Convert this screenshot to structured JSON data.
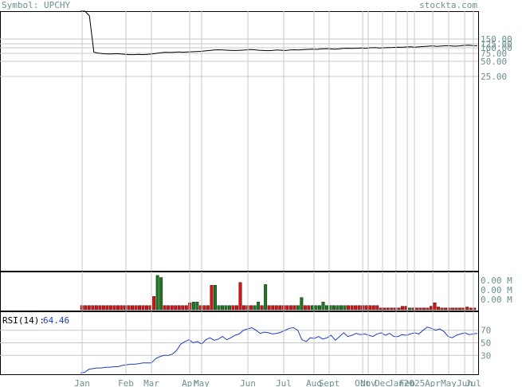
{
  "header": {
    "symbol": "Symbol: UPCHY",
    "site": "stockta.com"
  },
  "colors": {
    "axis_text": "#6b8f8f",
    "grid": "#c8c8c8",
    "frame": "#000000",
    "up": "#1e7a1e",
    "down": "#dd1111",
    "rsi_line": "#1d3fbf",
    "price_line": "#000000"
  },
  "chart_data": [
    {
      "type": "line",
      "panel": "price",
      "y_tick_labels": [
        "150.00",
        "125.00",
        "100.00",
        "75.00",
        "50.00",
        "25.00"
      ],
      "y_ticks": [
        150,
        125,
        100,
        75,
        50,
        25
      ],
      "x_tick_labels": [
        "Jan",
        "Feb",
        "Mar",
        "Apr",
        "May",
        "Jun",
        "Jul",
        "Aug",
        "Sept",
        "Oct",
        "Nov",
        "Dec",
        "Jan",
        "Feb",
        "2025",
        "Apr",
        "May",
        "Jun",
        "Jul"
      ],
      "series": [
        {
          "values": [
            3000,
            2000,
            1200,
            80,
            76,
            74,
            73,
            73,
            74,
            73,
            72,
            71,
            71,
            72,
            71,
            72,
            73,
            75,
            78,
            80,
            79,
            80,
            81,
            80,
            81,
            82,
            83,
            84,
            86,
            88,
            90,
            91,
            90,
            89,
            88,
            88,
            89,
            90,
            92,
            91,
            89,
            88,
            87,
            88,
            90,
            89,
            88,
            90,
            91,
            90,
            92,
            93,
            94,
            93,
            95,
            96,
            95,
            94,
            95,
            97,
            98,
            97,
            98,
            99,
            98,
            100,
            101,
            99,
            100,
            101,
            102,
            104,
            103,
            105,
            106,
            104,
            106,
            108,
            110,
            112,
            109,
            111,
            113,
            112,
            110,
            112,
            115,
            116,
            114,
            113
          ]
        }
      ]
    },
    {
      "type": "bar",
      "panel": "volume",
      "y_tick_labels": [
        "0.00 M",
        "0.00 M",
        "0.00 M"
      ],
      "bars": [
        {
          "c": "d",
          "v": 0.12
        },
        {
          "c": "d",
          "v": 0.12
        },
        {
          "c": "d",
          "v": 0.12
        },
        {
          "c": "d",
          "v": 0.12
        },
        {
          "c": "d",
          "v": 0.12
        },
        {
          "c": "d",
          "v": 0.12
        },
        {
          "c": "d",
          "v": 0.12
        },
        {
          "c": "d",
          "v": 0.12
        },
        {
          "c": "d",
          "v": 0.12
        },
        {
          "c": "d",
          "v": 0.12
        },
        {
          "c": "d",
          "v": 0.12
        },
        {
          "c": "d",
          "v": 0.12
        },
        {
          "c": "d",
          "v": 0.12
        },
        {
          "c": "d",
          "v": 0.12
        },
        {
          "c": "d",
          "v": 0.12
        },
        {
          "c": "d",
          "v": 0.12
        },
        {
          "c": "d",
          "v": 0.12
        },
        {
          "c": "d",
          "v": 0.12
        },
        {
          "c": "d",
          "v": 0.12
        },
        {
          "c": "d",
          "v": 0.12
        },
        {
          "c": "d",
          "v": 0.38
        },
        {
          "c": "u",
          "v": 0.98
        },
        {
          "c": "u",
          "v": 0.92
        },
        {
          "c": "d",
          "v": 0.12
        },
        {
          "c": "d",
          "v": 0.12
        },
        {
          "c": "d",
          "v": 0.12
        },
        {
          "c": "d",
          "v": 0.12
        },
        {
          "c": "d",
          "v": 0.12
        },
        {
          "c": "d",
          "v": 0.12
        },
        {
          "c": "d",
          "v": 0.12
        },
        {
          "c": "d",
          "v": 0.2
        },
        {
          "c": "u",
          "v": 0.22
        },
        {
          "c": "u",
          "v": 0.22
        },
        {
          "c": "d",
          "v": 0.12
        },
        {
          "c": "d",
          "v": 0.12
        },
        {
          "c": "d",
          "v": 0.12
        },
        {
          "c": "d",
          "v": 0.7
        },
        {
          "c": "u",
          "v": 0.7
        },
        {
          "c": "u",
          "v": 0.12
        },
        {
          "c": "u",
          "v": 0.12
        },
        {
          "c": "u",
          "v": 0.12
        },
        {
          "c": "u",
          "v": 0.12
        },
        {
          "c": "d",
          "v": 0.12
        },
        {
          "c": "d",
          "v": 0.12
        },
        {
          "c": "d",
          "v": 0.78
        },
        {
          "c": "d",
          "v": 0.12
        },
        {
          "c": "d",
          "v": 0.12
        },
        {
          "c": "d",
          "v": 0.12
        },
        {
          "c": "u",
          "v": 0.12
        },
        {
          "c": "u",
          "v": 0.22
        },
        {
          "c": "d",
          "v": 0.12
        },
        {
          "c": "u",
          "v": 0.72
        },
        {
          "c": "d",
          "v": 0.12
        },
        {
          "c": "d",
          "v": 0.12
        },
        {
          "c": "d",
          "v": 0.12
        },
        {
          "c": "d",
          "v": 0.12
        },
        {
          "c": "d",
          "v": 0.12
        },
        {
          "c": "d",
          "v": 0.12
        },
        {
          "c": "d",
          "v": 0.12
        },
        {
          "c": "d",
          "v": 0.12
        },
        {
          "c": "u",
          "v": 0.12
        },
        {
          "c": "u",
          "v": 0.35
        },
        {
          "c": "d",
          "v": 0.12
        },
        {
          "c": "d",
          "v": 0.12
        },
        {
          "c": "u",
          "v": 0.12
        },
        {
          "c": "u",
          "v": 0.12
        },
        {
          "c": "u",
          "v": 0.12
        },
        {
          "c": "u",
          "v": 0.22
        },
        {
          "c": "u",
          "v": 0.12
        },
        {
          "c": "u",
          "v": 0.12
        },
        {
          "c": "u",
          "v": 0.12
        },
        {
          "c": "u",
          "v": 0.12
        },
        {
          "c": "u",
          "v": 0.12
        },
        {
          "c": "u",
          "v": 0.12
        },
        {
          "c": "d",
          "v": 0.12
        },
        {
          "c": "d",
          "v": 0.12
        },
        {
          "c": "d",
          "v": 0.12
        },
        {
          "c": "d",
          "v": 0.12
        },
        {
          "c": "d",
          "v": 0.12
        },
        {
          "c": "d",
          "v": 0.12
        },
        {
          "c": "d",
          "v": 0.12
        },
        {
          "c": "d",
          "v": 0.12
        },
        {
          "c": "d",
          "v": 0.12
        },
        {
          "c": "d",
          "v": 0.05
        },
        {
          "c": "d",
          "v": 0.05
        },
        {
          "c": "d",
          "v": 0.05
        },
        {
          "c": "d",
          "v": 0.05
        },
        {
          "c": "d",
          "v": 0.05
        },
        {
          "c": "d",
          "v": 0.05
        },
        {
          "c": "d",
          "v": 0.1
        },
        {
          "c": "d",
          "v": 0.1
        },
        {
          "c": "u",
          "v": 0.05
        },
        {
          "c": "d",
          "v": 0.05
        },
        {
          "c": "d",
          "v": 0.05
        },
        {
          "c": "d",
          "v": 0.05
        },
        {
          "c": "d",
          "v": 0.05
        },
        {
          "c": "d",
          "v": 0.05
        },
        {
          "c": "d",
          "v": 0.1
        },
        {
          "c": "d",
          "v": 0.2
        },
        {
          "c": "d",
          "v": 0.08
        },
        {
          "c": "d",
          "v": 0.05
        },
        {
          "c": "d",
          "v": 0.05
        },
        {
          "c": "d",
          "v": 0.05
        },
        {
          "c": "d",
          "v": 0.05
        },
        {
          "c": "d",
          "v": 0.05
        },
        {
          "c": "d",
          "v": 0.05
        },
        {
          "c": "d",
          "v": 0.05
        },
        {
          "c": "d",
          "v": 0.08
        },
        {
          "c": "d",
          "v": 0.05
        },
        {
          "c": "d",
          "v": 0.05
        }
      ]
    },
    {
      "type": "line",
      "panel": "rsi",
      "label": "RSI(14):",
      "value_label": "64.46",
      "y_tick_labels": [
        "70",
        "50",
        "30"
      ],
      "y_ticks": [
        70,
        50,
        30
      ],
      "ylim": [
        0,
        100
      ],
      "series": [
        {
          "values": [
            2,
            3,
            8,
            9,
            10,
            10,
            11,
            11,
            12,
            12,
            14,
            15,
            16,
            16,
            17,
            18,
            18,
            18,
            25,
            28,
            30,
            30,
            32,
            38,
            48,
            52,
            55,
            50,
            52,
            48,
            55,
            58,
            54,
            56,
            60,
            55,
            58,
            62,
            64,
            70,
            72,
            74,
            70,
            65,
            67,
            66,
            64,
            65,
            67,
            70,
            73,
            74,
            70,
            55,
            52,
            58,
            57,
            60,
            56,
            58,
            62,
            54,
            60,
            66,
            60,
            62,
            65,
            63,
            64,
            62,
            60,
            64,
            66,
            62,
            65,
            60,
            60,
            63,
            62,
            64,
            66,
            64,
            70,
            75,
            73,
            70,
            72,
            68,
            60,
            58,
            62,
            64,
            66,
            63,
            64,
            65
          ]
        }
      ]
    }
  ]
}
